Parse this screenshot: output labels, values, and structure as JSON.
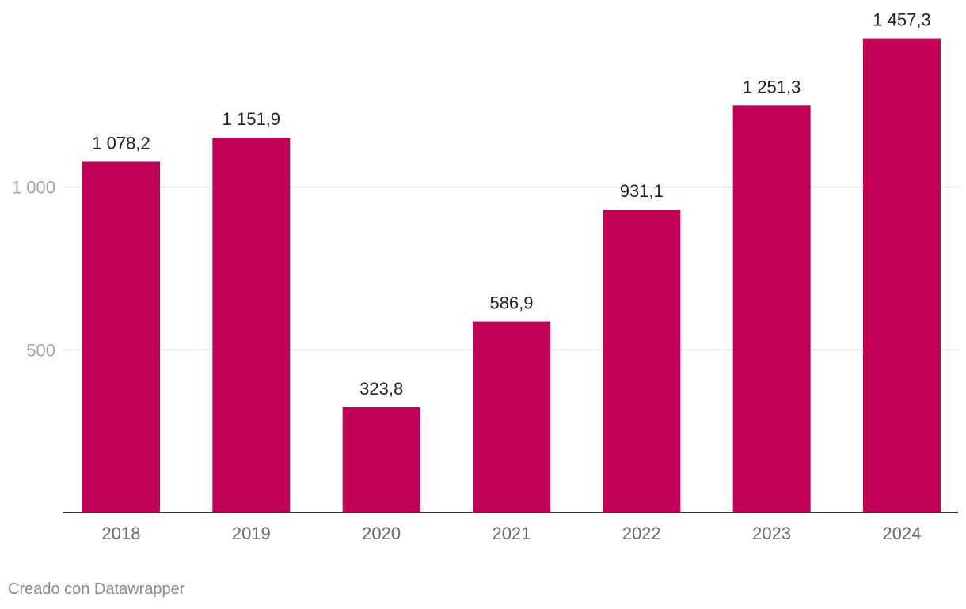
{
  "chart_data": {
    "type": "bar",
    "categories": [
      "2018",
      "2019",
      "2020",
      "2021",
      "2022",
      "2023",
      "2024"
    ],
    "values": [
      1078.2,
      1151.9,
      323.8,
      586.9,
      931.1,
      1251.3,
      1457.3
    ],
    "value_labels": [
      "1 078,2",
      "1 151,9",
      "323,8",
      "586,9",
      "931,1",
      "1 251,3",
      "1 457,3"
    ],
    "y_ticks": [
      {
        "value": 500,
        "label": "500"
      },
      {
        "value": 1000,
        "label": "1 000"
      }
    ],
    "ylim": [
      0,
      1500
    ],
    "grid": true,
    "title": "",
    "xlabel": "",
    "ylabel": "",
    "colors": {
      "bar": "#c20056",
      "grid": "#e3e3e3",
      "baseline": "#333333"
    }
  },
  "footer": {
    "credit": "Creado con Datawrapper"
  }
}
